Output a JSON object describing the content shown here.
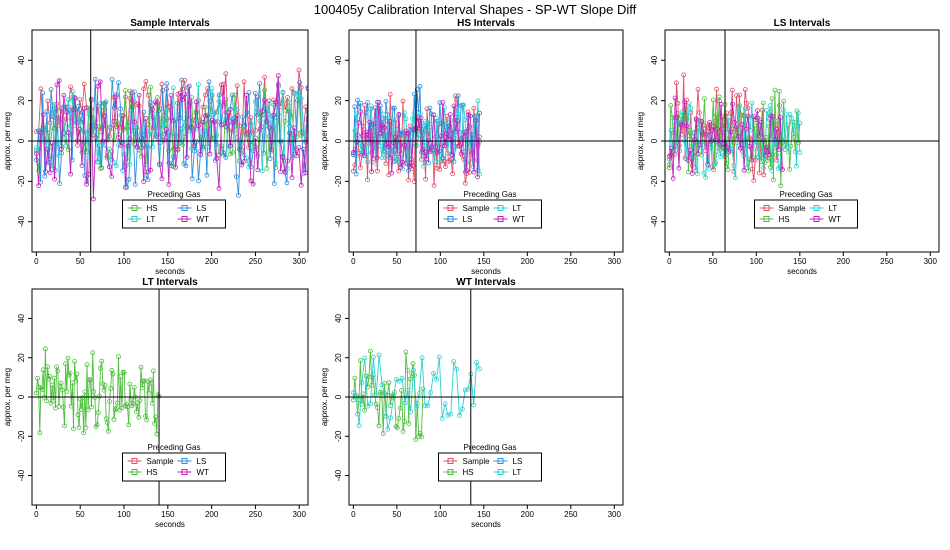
{
  "figure_title": "100405y   Calibration Interval Shapes - SP-WT Slope Diff",
  "colors": {
    "Sample": "#e0506a",
    "HS": "#4fbf3f",
    "LS": "#2c8fe0",
    "LT": "#2ccfd0",
    "WT": "#c020c0",
    "black": "#000000"
  },
  "chart_data": [
    {
      "type": "scatter",
      "title": "Sample Intervals",
      "xlabel": "seconds",
      "ylabel": "approx. per meg",
      "xlim": [
        -5,
        310
      ],
      "ylim": [
        -55,
        55
      ],
      "xticks": [
        0,
        50,
        100,
        150,
        200,
        250,
        300
      ],
      "yticks": [
        -40,
        -20,
        0,
        20,
        40
      ],
      "vline": 62,
      "legend": {
        "title": "Preceding Gas",
        "items": [
          "HS",
          "LS",
          "LT",
          "WT"
        ],
        "position": "bottom-center"
      },
      "series": [
        {
          "name": "Sample",
          "xmax": 310,
          "mean": 15,
          "amp": 14,
          "n": 120,
          "seed": 11
        },
        {
          "name": "HS",
          "xmax": 310,
          "mean": 5,
          "amp": 15,
          "n": 120,
          "seed": 12
        },
        {
          "name": "LS",
          "xmax": 310,
          "mean": 3,
          "amp": 22,
          "n": 130,
          "seed": 13
        },
        {
          "name": "LT",
          "xmax": 310,
          "mean": 5,
          "amp": 18,
          "n": 120,
          "seed": 14
        },
        {
          "name": "WT",
          "xmax": 310,
          "mean": 2,
          "amp": 22,
          "n": 120,
          "seed": 15
        }
      ]
    },
    {
      "type": "scatter",
      "title": "HS Intervals",
      "xlabel": "seconds",
      "ylabel": "approx. per meg",
      "xlim": [
        -5,
        310
      ],
      "ylim": [
        -55,
        55
      ],
      "xticks": [
        0,
        50,
        100,
        150,
        200,
        250,
        300
      ],
      "yticks": [
        -40,
        -20,
        0,
        20,
        40
      ],
      "vline": 72,
      "legend": {
        "title": "Preceding Gas",
        "items": [
          "Sample",
          "LT",
          "LS",
          "WT"
        ],
        "position": "bottom-center"
      },
      "series": [
        {
          "name": "Sample",
          "xmax": 145,
          "mean": 0,
          "amp": 18,
          "n": 90,
          "seed": 21
        },
        {
          "name": "LS",
          "xmax": 145,
          "mean": 5,
          "amp": 16,
          "n": 90,
          "seed": 22
        },
        {
          "name": "LT",
          "xmax": 145,
          "mean": 3,
          "amp": 14,
          "n": 80,
          "seed": 23
        },
        {
          "name": "WT",
          "xmax": 145,
          "mean": 2,
          "amp": 14,
          "n": 70,
          "seed": 24
        }
      ]
    },
    {
      "type": "scatter",
      "title": "LS Intervals",
      "xlabel": "seconds",
      "ylabel": "approx. per meg",
      "xlim": [
        -5,
        310
      ],
      "ylim": [
        -55,
        55
      ],
      "xticks": [
        0,
        50,
        100,
        150,
        200,
        250,
        300
      ],
      "yticks": [
        -40,
        -20,
        0,
        20,
        40
      ],
      "vline": 64,
      "legend": {
        "title": "Preceding Gas",
        "items": [
          "Sample",
          "LT",
          "HS",
          "WT"
        ],
        "position": "bottom-center"
      },
      "series": [
        {
          "name": "Sample",
          "xmax": 130,
          "mean": 5,
          "amp": 20,
          "n": 80,
          "seed": 31
        },
        {
          "name": "HS",
          "xmax": 150,
          "mean": 3,
          "amp": 18,
          "n": 90,
          "seed": 32
        },
        {
          "name": "LT",
          "xmax": 150,
          "mean": 2,
          "amp": 15,
          "n": 80,
          "seed": 33
        },
        {
          "name": "WT",
          "xmax": 130,
          "mean": 2,
          "amp": 15,
          "n": 60,
          "seed": 34
        }
      ]
    },
    {
      "type": "scatter",
      "title": "LT Intervals",
      "xlabel": "seconds",
      "ylabel": "approx. per meg",
      "xlim": [
        -5,
        310
      ],
      "ylim": [
        -55,
        55
      ],
      "xticks": [
        0,
        50,
        100,
        150,
        200,
        250,
        300
      ],
      "yticks": [
        -40,
        -20,
        0,
        20,
        40
      ],
      "vline": 140,
      "legend": {
        "title": "Preceding Gas",
        "items": [
          "Sample",
          "LS",
          "HS",
          "WT"
        ],
        "position": "bottom-center"
      },
      "series": [
        {
          "name": "HS",
          "xmax": 140,
          "mean": 2,
          "amp": 16,
          "n": 110,
          "seed": 41
        }
      ]
    },
    {
      "type": "scatter",
      "title": "WT Intervals",
      "xlabel": "seconds",
      "ylabel": "approx. per meg",
      "xlim": [
        -5,
        310
      ],
      "ylim": [
        -55,
        55
      ],
      "xticks": [
        0,
        50,
        100,
        150,
        200,
        250,
        300
      ],
      "yticks": [
        -40,
        -20,
        0,
        20,
        40
      ],
      "vline": 135,
      "legend": {
        "title": "Preceding Gas",
        "items": [
          "Sample",
          "LS",
          "HS",
          "LT"
        ],
        "position": "bottom-center"
      },
      "series": [
        {
          "name": "HS",
          "xmax": 80,
          "mean": 0,
          "amp": 18,
          "n": 50,
          "seed": 51
        },
        {
          "name": "LT",
          "xmax": 145,
          "mean": 2,
          "amp": 18,
          "n": 45,
          "seed": 52
        }
      ]
    }
  ]
}
